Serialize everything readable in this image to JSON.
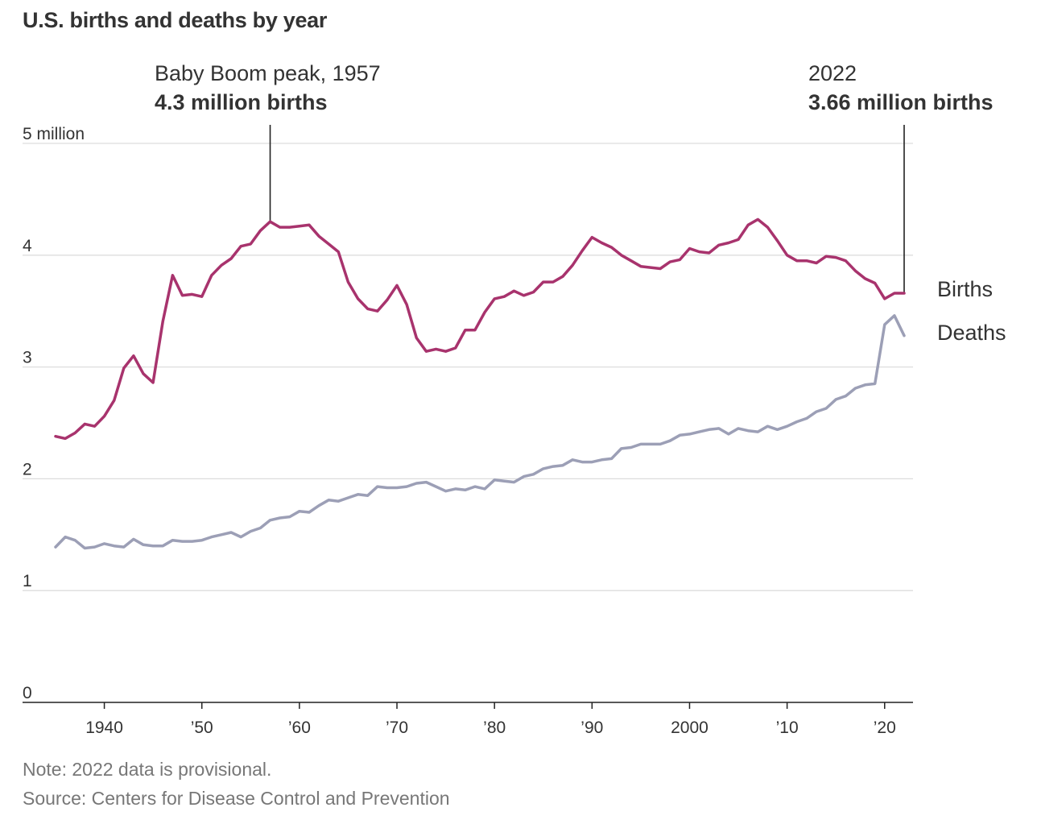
{
  "title": "U.S. births and deaths by year",
  "chart_data": {
    "type": "line",
    "x": [
      1935,
      1936,
      1937,
      1938,
      1939,
      1940,
      1941,
      1942,
      1943,
      1944,
      1945,
      1946,
      1947,
      1948,
      1949,
      1950,
      1951,
      1952,
      1953,
      1954,
      1955,
      1956,
      1957,
      1958,
      1959,
      1960,
      1961,
      1962,
      1963,
      1964,
      1965,
      1966,
      1967,
      1968,
      1969,
      1970,
      1971,
      1972,
      1973,
      1974,
      1975,
      1976,
      1977,
      1978,
      1979,
      1980,
      1981,
      1982,
      1983,
      1984,
      1985,
      1986,
      1987,
      1988,
      1989,
      1990,
      1991,
      1992,
      1993,
      1994,
      1995,
      1996,
      1997,
      1998,
      1999,
      2000,
      2001,
      2002,
      2003,
      2004,
      2005,
      2006,
      2007,
      2008,
      2009,
      2010,
      2011,
      2012,
      2013,
      2014,
      2015,
      2016,
      2017,
      2018,
      2019,
      2020,
      2021,
      2022
    ],
    "series": [
      {
        "name": "Births",
        "color": "#a8336d",
        "values": [
          2.38,
          2.36,
          2.41,
          2.49,
          2.47,
          2.56,
          2.7,
          2.99,
          3.1,
          2.94,
          2.86,
          3.41,
          3.82,
          3.64,
          3.65,
          3.63,
          3.82,
          3.91,
          3.97,
          4.08,
          4.1,
          4.22,
          4.3,
          4.25,
          4.25,
          4.26,
          4.27,
          4.17,
          4.1,
          4.03,
          3.76,
          3.61,
          3.52,
          3.5,
          3.6,
          3.73,
          3.56,
          3.26,
          3.14,
          3.16,
          3.14,
          3.17,
          3.33,
          3.33,
          3.49,
          3.61,
          3.63,
          3.68,
          3.64,
          3.67,
          3.76,
          3.76,
          3.81,
          3.91,
          4.04,
          4.16,
          4.11,
          4.07,
          4.0,
          3.95,
          3.9,
          3.89,
          3.88,
          3.94,
          3.96,
          4.06,
          4.03,
          4.02,
          4.09,
          4.11,
          4.14,
          4.27,
          4.32,
          4.25,
          4.13,
          4.0,
          3.95,
          3.95,
          3.93,
          3.99,
          3.98,
          3.95,
          3.86,
          3.79,
          3.75,
          3.61,
          3.66,
          3.66
        ]
      },
      {
        "name": "Deaths",
        "color": "#9c9fb6",
        "values": [
          1.39,
          1.48,
          1.45,
          1.38,
          1.39,
          1.42,
          1.4,
          1.39,
          1.46,
          1.41,
          1.4,
          1.4,
          1.45,
          1.44,
          1.44,
          1.45,
          1.48,
          1.5,
          1.52,
          1.48,
          1.53,
          1.56,
          1.63,
          1.65,
          1.66,
          1.71,
          1.7,
          1.76,
          1.81,
          1.8,
          1.83,
          1.86,
          1.85,
          1.93,
          1.92,
          1.92,
          1.93,
          1.96,
          1.97,
          1.93,
          1.89,
          1.91,
          1.9,
          1.93,
          1.91,
          1.99,
          1.98,
          1.97,
          2.02,
          2.04,
          2.09,
          2.11,
          2.12,
          2.17,
          2.15,
          2.15,
          2.17,
          2.18,
          2.27,
          2.28,
          2.31,
          2.31,
          2.31,
          2.34,
          2.39,
          2.4,
          2.42,
          2.44,
          2.45,
          2.4,
          2.45,
          2.43,
          2.42,
          2.47,
          2.44,
          2.47,
          2.51,
          2.54,
          2.6,
          2.63,
          2.71,
          2.74,
          2.81,
          2.84,
          2.85,
          3.38,
          3.46,
          3.28
        ]
      }
    ],
    "x_tick_labels": [
      {
        "x": 1940,
        "label": "1940"
      },
      {
        "x": 1950,
        "label": "’50"
      },
      {
        "x": 1960,
        "label": "’60"
      },
      {
        "x": 1970,
        "label": "’70"
      },
      {
        "x": 1980,
        "label": "’80"
      },
      {
        "x": 1990,
        "label": "’90"
      },
      {
        "x": 2000,
        "label": "2000"
      },
      {
        "x": 2010,
        "label": "’10"
      },
      {
        "x": 2020,
        "label": "’20"
      }
    ],
    "y_tick_labels": [
      {
        "y": 0,
        "label": "0"
      },
      {
        "y": 1,
        "label": "1"
      },
      {
        "y": 2,
        "label": "2"
      },
      {
        "y": 3,
        "label": "3"
      },
      {
        "y": 4,
        "label": "4"
      },
      {
        "y": 5,
        "label": "5 million"
      }
    ],
    "ylim": [
      0,
      5
    ],
    "xlim": [
      1935,
      2022
    ],
    "grid": "horizontal",
    "annotations": [
      {
        "x": 1957,
        "y": 4.3,
        "line1": "Baby Boom peak, 1957",
        "line2": "4.3 million births"
      },
      {
        "x": 2022,
        "y": 3.66,
        "line1": "2022",
        "line2": "3.66 million births"
      }
    ],
    "series_labels": [
      "Births",
      "Deaths"
    ]
  },
  "footer": {
    "note": "Note: 2022 data is provisional.",
    "source": "Source: Centers for Disease Control and Prevention"
  }
}
